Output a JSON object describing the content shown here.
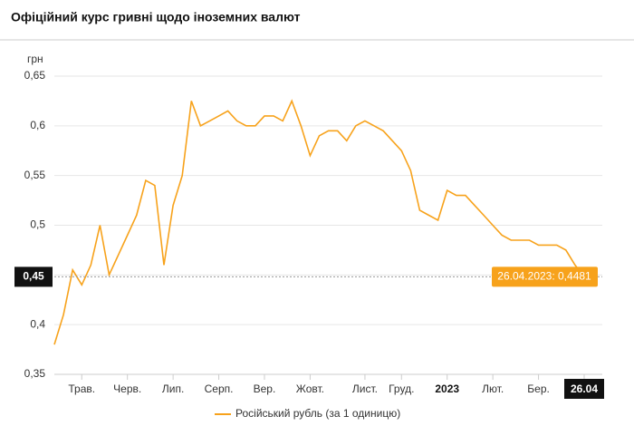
{
  "chart_data": {
    "type": "line",
    "title": "Офіційний курс гривні щодо іноземних валют",
    "y_unit": "грн",
    "categories": [
      null,
      null,
      null,
      "Трав.",
      null,
      null,
      null,
      null,
      "Черв.",
      null,
      null,
      null,
      null,
      "Лип.",
      null,
      null,
      null,
      null,
      "Серп.",
      null,
      null,
      null,
      null,
      "Вер.",
      null,
      null,
      null,
      null,
      "Жовт.",
      null,
      null,
      null,
      null,
      null,
      "Лист.",
      null,
      null,
      null,
      "Груд.",
      null,
      null,
      null,
      null,
      "2023",
      null,
      null,
      null,
      null,
      "Лют.",
      null,
      null,
      null,
      null,
      "Бер.",
      null,
      null,
      null,
      null,
      "26.04"
    ],
    "series": [
      {
        "name": "Російський рубль (за 1 одиницю)",
        "color": "#f7a21b",
        "values": [
          0.38,
          0.41,
          0.455,
          0.44,
          0.46,
          0.5,
          0.45,
          0.47,
          0.49,
          0.51,
          0.545,
          0.54,
          0.46,
          0.52,
          0.55,
          0.625,
          0.6,
          0.605,
          0.61,
          0.615,
          0.605,
          0.6,
          0.6,
          0.61,
          0.61,
          0.605,
          0.625,
          0.6,
          0.57,
          0.59,
          0.595,
          0.595,
          0.585,
          0.6,
          0.605,
          0.6,
          0.595,
          0.585,
          0.575,
          0.555,
          0.515,
          0.51,
          0.505,
          0.535,
          0.53,
          0.53,
          0.52,
          0.51,
          0.5,
          0.49,
          0.485,
          0.485,
          0.485,
          0.48,
          0.48,
          0.48,
          0.475,
          0.46,
          0.4481
        ]
      }
    ],
    "ylim": [
      0.35,
      0.65
    ],
    "yticks": [
      {
        "value": 0.35,
        "label": "0,35"
      },
      {
        "value": 0.4,
        "label": "0,4"
      },
      {
        "value": 0.45,
        "label": "0,45"
      },
      {
        "value": 0.5,
        "label": "0,5"
      },
      {
        "value": 0.55,
        "label": "0,55"
      },
      {
        "value": 0.6,
        "label": "0,6"
      },
      {
        "value": 0.65,
        "label": "0,65"
      }
    ],
    "grid": true,
    "crosshair_label": "0,45",
    "tooltip": "26.04.2023: 0,4481"
  }
}
